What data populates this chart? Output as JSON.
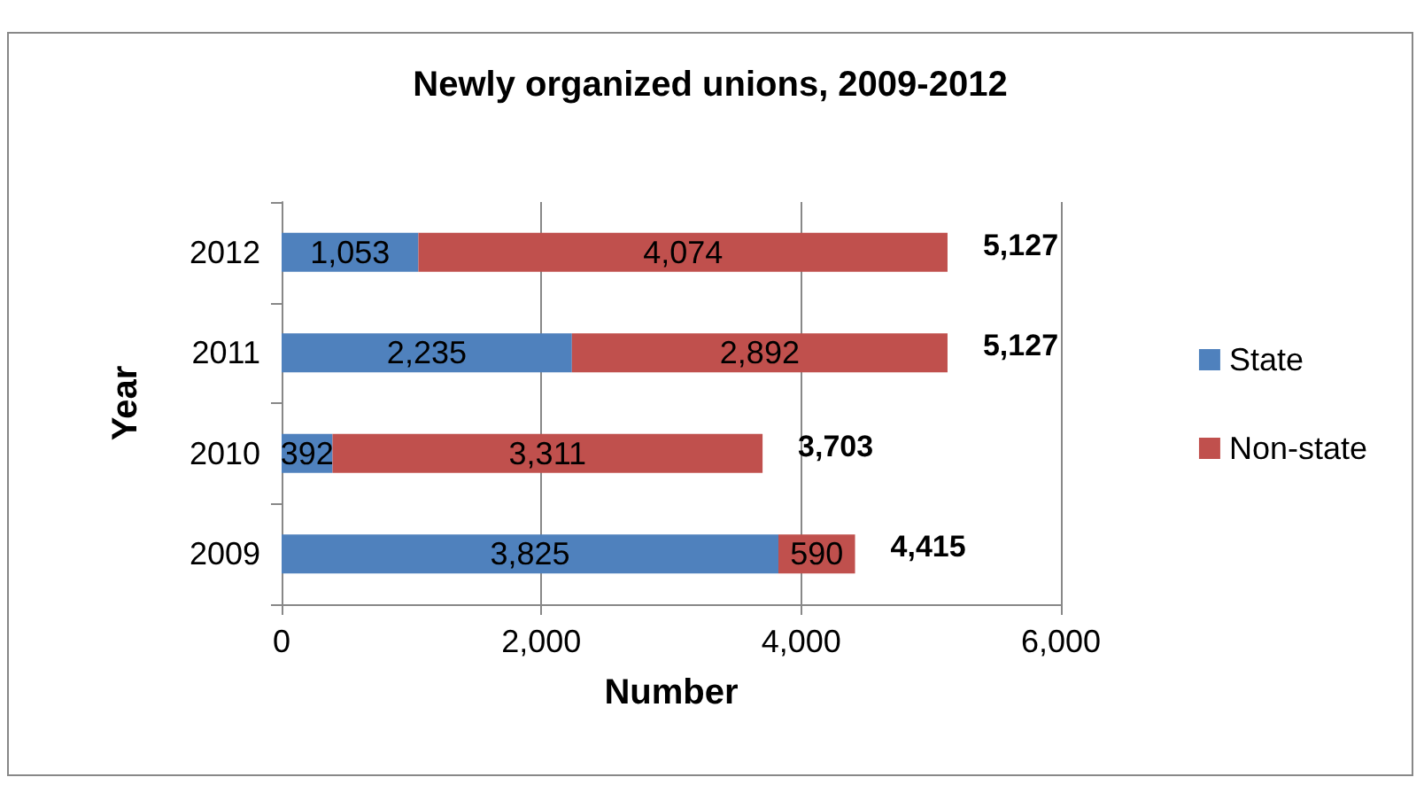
{
  "chart_data": {
    "type": "bar",
    "orientation": "horizontal",
    "stacked": true,
    "title": "Newly organized unions, 2009-2012",
    "xlabel": "Number",
    "ylabel": "Year",
    "categories": [
      "2012",
      "2011",
      "2010",
      "2009"
    ],
    "series": [
      {
        "name": "State",
        "color": "#4f81bd",
        "values": [
          1053,
          2235,
          392,
          3825
        ],
        "value_labels": [
          "1,053",
          "2,235",
          "392",
          "3,825"
        ]
      },
      {
        "name": "Non-state",
        "color": "#c0504d",
        "values": [
          4074,
          2892,
          3311,
          590
        ],
        "value_labels": [
          "4,074",
          "2,892",
          "3,311",
          "590"
        ]
      }
    ],
    "xlim": [
      0,
      6000
    ],
    "xticks": [
      0,
      {
        "value": 2000,
        "label": "2,000"
      },
      {
        "value": 4000,
        "label": "4,000"
      },
      {
        "value": 6000,
        "label": "6,000"
      }
    ],
    "grid": "x",
    "legend": "right",
    "totals": [
      "5,127",
      "5,127",
      "3,703",
      "4,415"
    ]
  }
}
